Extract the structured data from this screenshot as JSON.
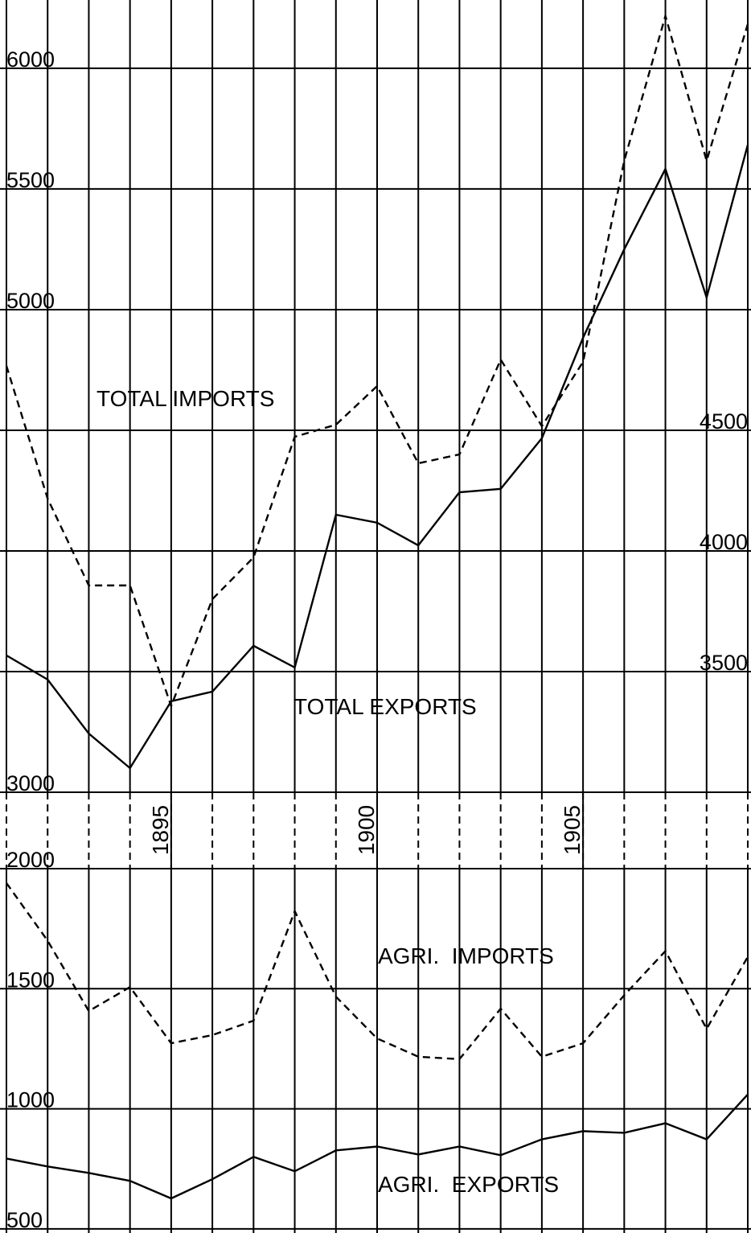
{
  "chart_data": [
    {
      "type": "line",
      "x": [
        1891,
        1892,
        1893,
        1894,
        1895,
        1896,
        1897,
        1898,
        1899,
        1900,
        1901,
        1902,
        1903,
        1904,
        1905,
        1906,
        1907,
        1908,
        1909
      ],
      "xlim": [
        1891,
        1909
      ],
      "xticks": [
        1895,
        1900,
        1905
      ],
      "ylim": [
        3000,
        6283
      ],
      "yticks": [
        3000,
        5000,
        5500,
        6000
      ],
      "y2lim": [
        3000,
        6283
      ],
      "y2ticks": [
        3500,
        4000,
        4500
      ],
      "grid": true,
      "series": [
        {
          "name": "TOTAL IMPORTS",
          "color": "#000000",
          "dash": true,
          "values": [
            4767,
            4217,
            3857,
            3857,
            3357,
            3800,
            3973,
            4473,
            4523,
            4683,
            4363,
            4400,
            4793,
            4517,
            4783,
            5617,
            6217,
            5617,
            6183
          ]
        },
        {
          "name": "TOTAL EXPORTS",
          "color": "#000000",
          "dash": false,
          "values": [
            3567,
            3467,
            3243,
            3100,
            3377,
            3417,
            3607,
            3517,
            4150,
            4117,
            4023,
            4243,
            4257,
            4467,
            4883,
            5250,
            5583,
            5050,
            5683
          ]
        }
      ]
    },
    {
      "type": "line",
      "x": [
        1891,
        1892,
        1893,
        1894,
        1895,
        1896,
        1897,
        1898,
        1899,
        1900,
        1901,
        1902,
        1903,
        1904,
        1905,
        1906,
        1907,
        1908,
        1909
      ],
      "xlim": [
        1891,
        1909
      ],
      "ylim": [
        483,
        2000
      ],
      "yticks": [
        500,
        1000,
        1500,
        2000
      ],
      "grid": true,
      "series": [
        {
          "name": "AGRI.  IMPORTS",
          "color": "#000000",
          "dash": true,
          "values": [
            1940,
            1700,
            1407,
            1507,
            1273,
            1307,
            1367,
            1823,
            1467,
            1293,
            1217,
            1207,
            1417,
            1217,
            1273,
            1473,
            1657,
            1333,
            1633
          ]
        },
        {
          "name": "AGRI.  EXPORTS",
          "color": "#000000",
          "dash": false,
          "values": [
            793,
            760,
            733,
            700,
            627,
            707,
            800,
            740,
            827,
            843,
            810,
            843,
            807,
            873,
            907,
            900,
            940,
            873,
            1060
          ]
        }
      ]
    }
  ]
}
